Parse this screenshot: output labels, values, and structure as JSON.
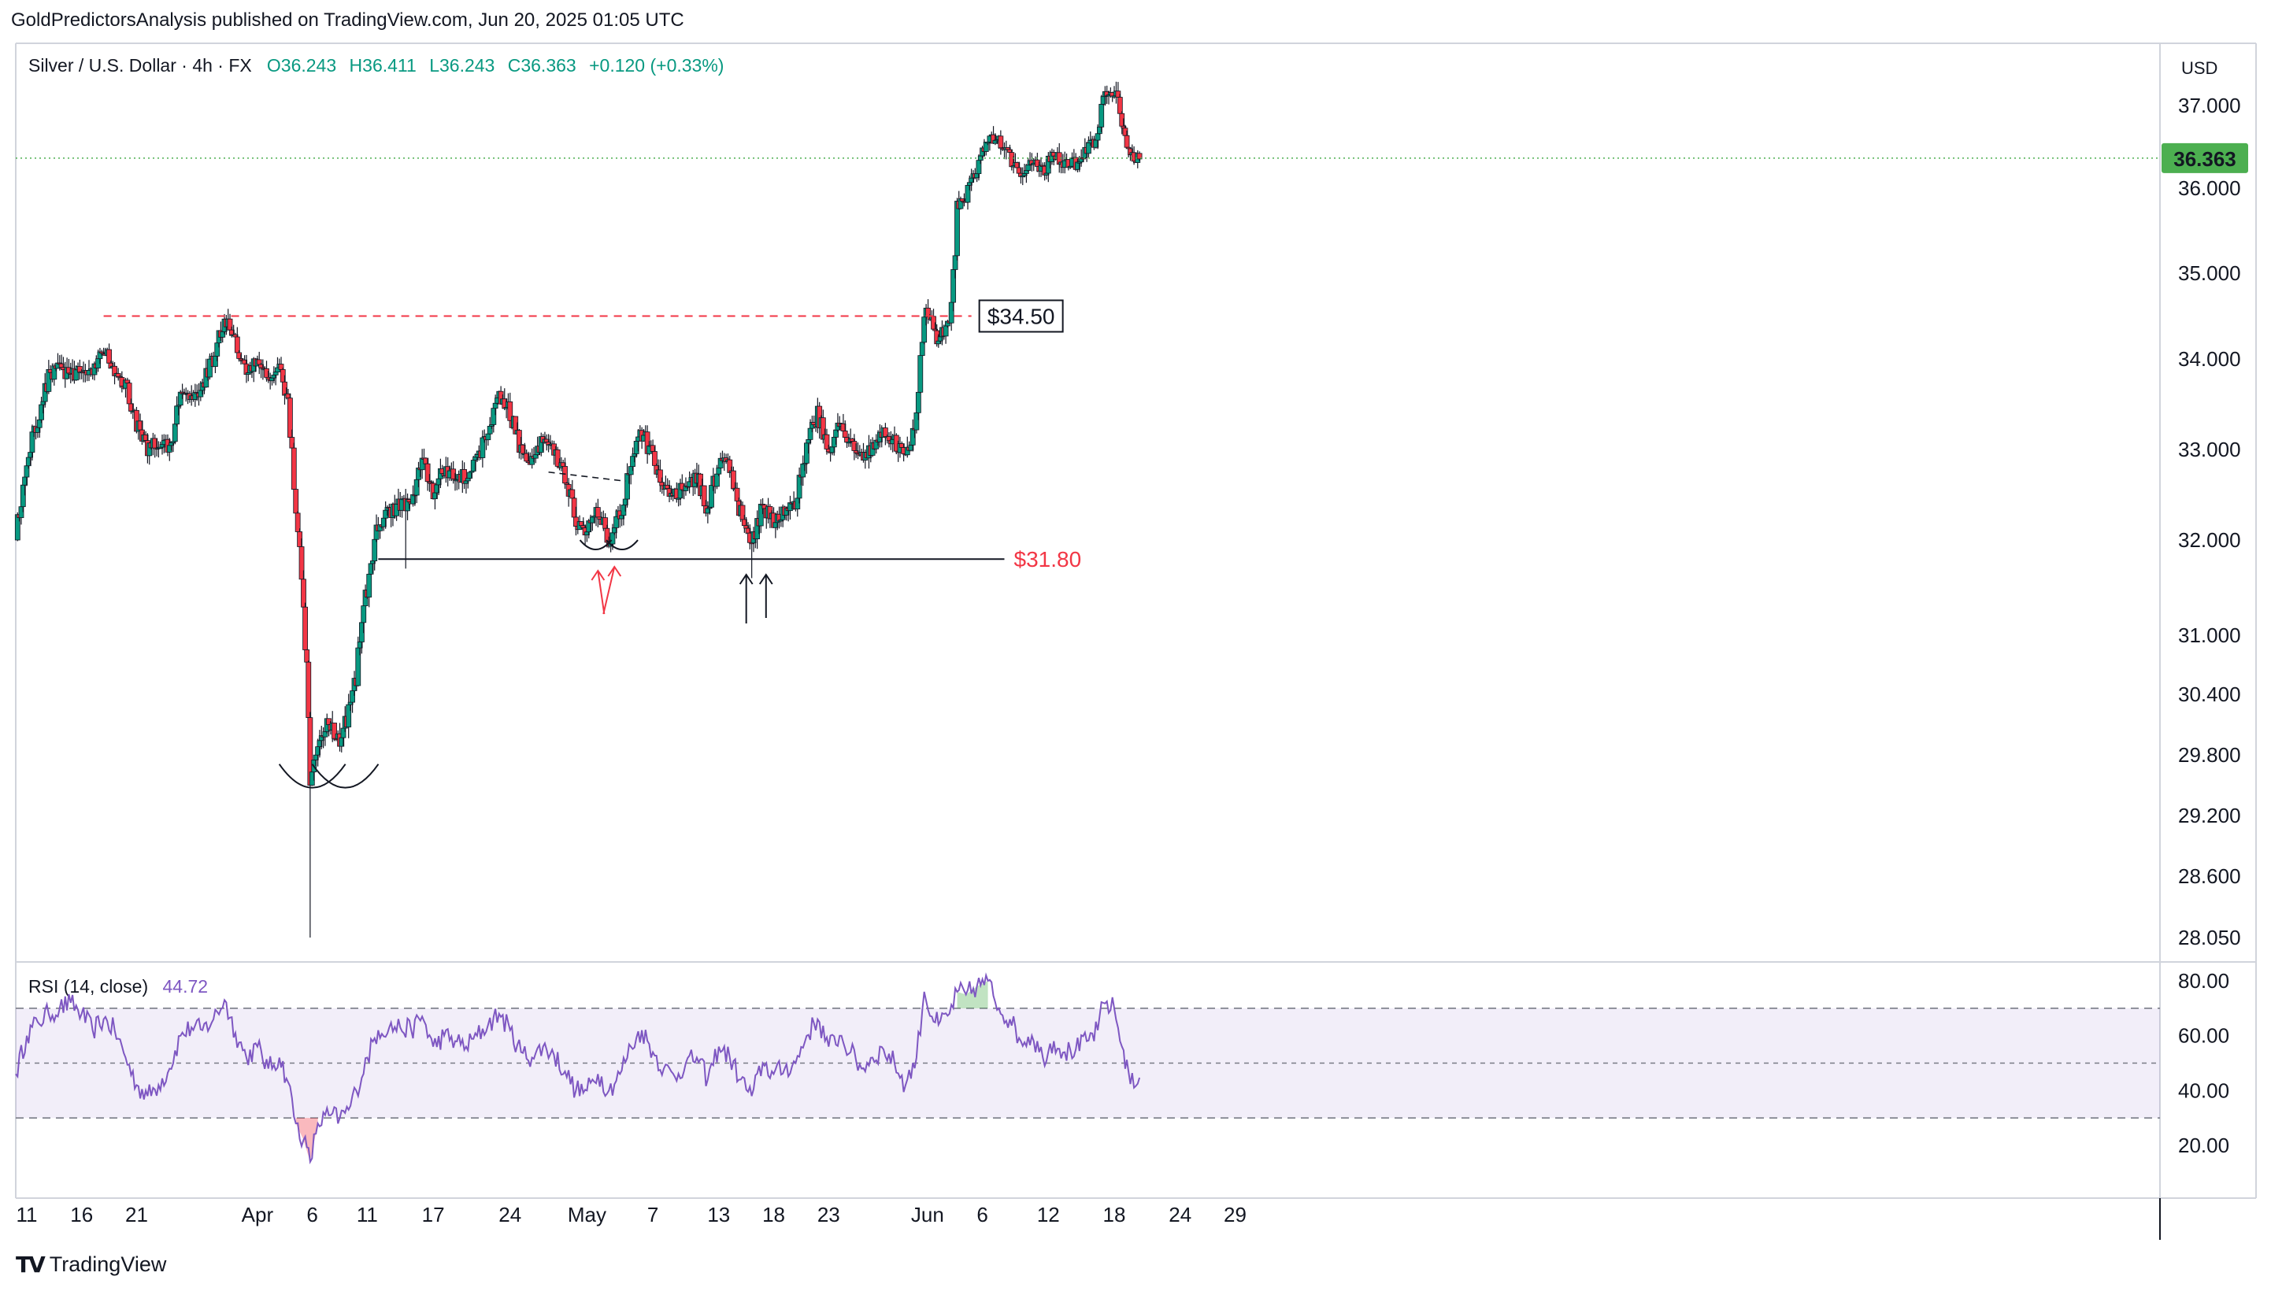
{
  "header": {
    "published_line": "GoldPredictorsAnalysis published on TradingView.com, Jun 20, 2025 01:05 UTC",
    "symbol": "Silver / U.S. Dollar · 4h · FX",
    "open": "O36.243",
    "high": "H36.411",
    "low": "L36.243",
    "close": "C36.363",
    "change": "+0.120 (+0.33%)"
  },
  "axis": {
    "currency": "USD"
  },
  "rsi": {
    "label": "RSI (14, close)",
    "value": "44.72"
  },
  "footer": {
    "brand": "TradingView"
  },
  "colors": {
    "up": "#089981",
    "down": "#f23645",
    "rsi": "#7e57c2",
    "price_badge": "#4caf50"
  },
  "chart_data": [
    {
      "type": "candlestick",
      "symbol": "Silver / U.S. Dollar",
      "interval": "4h",
      "y_ticks": [
        28.05,
        28.6,
        29.2,
        29.8,
        30.4,
        31.0,
        32.0,
        33.0,
        34.0,
        35.0,
        36.0,
        37.0
      ],
      "y_tick_labels": [
        "28.050",
        "28.600",
        "29.200",
        "29.800",
        "30.400",
        "31.000",
        "32.000",
        "33.000",
        "34.000",
        "35.000",
        "36.000",
        "37.000"
      ],
      "x_ticks": [
        {
          "day": 11,
          "label": "11"
        },
        {
          "day": 16,
          "label": "16"
        },
        {
          "day": 21,
          "label": "21"
        },
        {
          "day": 32,
          "label": "Apr"
        },
        {
          "day": 37,
          "label": "6"
        },
        {
          "day": 42,
          "label": "11"
        },
        {
          "day": 48,
          "label": "17"
        },
        {
          "day": 55,
          "label": "24"
        },
        {
          "day": 62,
          "label": "May"
        },
        {
          "day": 68,
          "label": "7"
        },
        {
          "day": 74,
          "label": "13"
        },
        {
          "day": 79,
          "label": "18"
        },
        {
          "day": 84,
          "label": "23"
        },
        {
          "day": 93,
          "label": "Jun"
        },
        {
          "day": 98,
          "label": "6"
        },
        {
          "day": 104,
          "label": "12"
        },
        {
          "day": 110,
          "label": "18"
        },
        {
          "day": 116,
          "label": "24"
        },
        {
          "day": 121,
          "label": "29"
        }
      ],
      "close_path": [
        [
          10,
          32.0
        ],
        [
          11,
          32.9
        ],
        [
          12,
          33.3
        ],
        [
          13,
          33.8
        ],
        [
          14,
          33.9
        ],
        [
          15,
          33.8
        ],
        [
          16,
          33.9
        ],
        [
          17,
          33.8
        ],
        [
          18,
          34.1
        ],
        [
          19,
          33.9
        ],
        [
          20,
          33.7
        ],
        [
          21,
          33.3
        ],
        [
          22,
          33.0
        ],
        [
          23,
          33.1
        ],
        [
          24,
          33.0
        ],
        [
          25,
          33.6
        ],
        [
          26,
          33.6
        ],
        [
          27,
          33.7
        ],
        [
          28,
          34.0
        ],
        [
          29,
          34.5
        ],
        [
          30,
          34.2
        ],
        [
          31,
          33.8
        ],
        [
          32,
          34.0
        ],
        [
          33,
          33.8
        ],
        [
          34,
          33.9
        ],
        [
          34.8,
          33.5
        ],
        [
          35.5,
          32.4
        ],
        [
          36.2,
          31.4
        ],
        [
          36.8,
          29.6
        ],
        [
          37.5,
          29.9
        ],
        [
          38.5,
          30.1
        ],
        [
          39.5,
          29.9
        ],
        [
          40.3,
          30.2
        ],
        [
          41,
          30.6
        ],
        [
          42,
          31.5
        ],
        [
          43,
          32.2
        ],
        [
          44,
          32.3
        ],
        [
          45,
          32.4
        ],
        [
          46,
          32.4
        ],
        [
          47,
          32.9
        ],
        [
          48,
          32.5
        ],
        [
          49,
          32.8
        ],
        [
          50,
          32.7
        ],
        [
          51,
          32.7
        ],
        [
          52,
          32.9
        ],
        [
          53,
          33.2
        ],
        [
          54,
          33.6
        ],
        [
          55,
          33.4
        ],
        [
          56,
          33.0
        ],
        [
          57,
          32.9
        ],
        [
          58,
          33.1
        ],
        [
          59,
          33.0
        ],
        [
          60,
          32.7
        ],
        [
          61,
          32.2
        ],
        [
          62,
          32.1
        ],
        [
          63,
          32.3
        ],
        [
          64,
          32.0
        ],
        [
          65,
          32.3
        ],
        [
          66,
          32.8
        ],
        [
          67,
          33.2
        ],
        [
          68,
          32.9
        ],
        [
          69,
          32.6
        ],
        [
          70,
          32.5
        ],
        [
          71,
          32.6
        ],
        [
          72,
          32.7
        ],
        [
          73,
          32.3
        ],
        [
          74,
          32.9
        ],
        [
          75,
          32.8
        ],
        [
          76,
          32.3
        ],
        [
          77,
          31.9
        ],
        [
          78,
          32.4
        ],
        [
          79,
          32.2
        ],
        [
          80,
          32.3
        ],
        [
          81,
          32.4
        ],
        [
          82,
          33.0
        ],
        [
          83,
          33.4
        ],
        [
          84,
          33.0
        ],
        [
          85,
          33.3
        ],
        [
          86,
          33.1
        ],
        [
          87,
          32.9
        ],
        [
          88,
          33.0
        ],
        [
          89,
          33.2
        ],
        [
          90,
          33.1
        ],
        [
          91,
          32.9
        ],
        [
          92,
          33.3
        ],
        [
          92.7,
          34.6
        ],
        [
          93.4,
          34.4
        ],
        [
          94,
          34.2
        ],
        [
          95,
          34.5
        ],
        [
          95.7,
          35.7
        ],
        [
          96.5,
          35.9
        ],
        [
          97.5,
          36.2
        ],
        [
          98.5,
          36.6
        ],
        [
          99.5,
          36.6
        ],
        [
          100.5,
          36.4
        ],
        [
          101.5,
          36.1
        ],
        [
          102.5,
          36.3
        ],
        [
          103.5,
          36.2
        ],
        [
          104.5,
          36.4
        ],
        [
          105.5,
          36.3
        ],
        [
          106.5,
          36.3
        ],
        [
          107.5,
          36.5
        ],
        [
          108.5,
          36.6
        ],
        [
          109,
          37.1
        ],
        [
          110,
          37.2
        ],
        [
          110.7,
          36.8
        ],
        [
          111.3,
          36.5
        ],
        [
          111.8,
          36.3
        ],
        [
          112.3,
          36.36
        ]
      ],
      "big_wick_lows": [
        [
          36.8,
          28.05
        ],
        [
          77,
          31.6
        ],
        [
          45.5,
          31.7
        ]
      ],
      "annotations": {
        "resistance": {
          "label": "$34.50",
          "value": 34.5,
          "from_day": 18,
          "to_day": 97
        },
        "support": {
          "label": "$31.80",
          "value": 31.8,
          "from_day": 43,
          "to_day": 100
        },
        "current_price": {
          "label": "36.363",
          "value": 36.363
        },
        "neckline_values": [
          32.75,
          32.65
        ],
        "arrow_days_red": [
          63,
          64.5
        ],
        "arrow_days_black": [
          76.5,
          78.3
        ],
        "bottoms_days": [
          37,
          40
        ]
      }
    },
    {
      "type": "line",
      "name": "RSI (14, close)",
      "y_ticks": [
        20,
        40,
        60,
        80
      ],
      "y_tick_labels": [
        "20.00",
        "40.00",
        "60.00",
        "80.00"
      ],
      "bands": {
        "upper": 70,
        "middle": 50,
        "lower": 30
      },
      "points": [
        [
          10,
          46
        ],
        [
          11,
          60
        ],
        [
          12,
          65
        ],
        [
          13,
          68
        ],
        [
          14,
          70
        ],
        [
          15,
          72
        ],
        [
          16,
          68
        ],
        [
          17,
          62
        ],
        [
          18,
          66
        ],
        [
          19,
          62
        ],
        [
          20,
          52
        ],
        [
          21,
          42
        ],
        [
          22,
          38
        ],
        [
          23,
          42
        ],
        [
          24,
          48
        ],
        [
          25,
          60
        ],
        [
          26,
          63
        ],
        [
          27,
          62
        ],
        [
          28,
          66
        ],
        [
          29,
          73
        ],
        [
          30,
          61
        ],
        [
          31,
          52
        ],
        [
          32,
          56
        ],
        [
          33,
          48
        ],
        [
          34,
          52
        ],
        [
          34.8,
          43
        ],
        [
          35.5,
          28
        ],
        [
          36.2,
          22
        ],
        [
          36.8,
          14
        ],
        [
          37.5,
          28
        ],
        [
          38.5,
          31
        ],
        [
          39.5,
          30
        ],
        [
          40.3,
          33
        ],
        [
          41,
          40
        ],
        [
          42,
          52
        ],
        [
          43,
          62
        ],
        [
          44,
          63
        ],
        [
          45,
          63
        ],
        [
          46,
          62
        ],
        [
          47,
          67
        ],
        [
          48,
          56
        ],
        [
          49,
          60
        ],
        [
          50,
          58
        ],
        [
          51,
          56
        ],
        [
          52,
          60
        ],
        [
          53,
          64
        ],
        [
          54,
          68
        ],
        [
          55,
          62
        ],
        [
          56,
          54
        ],
        [
          57,
          52
        ],
        [
          58,
          56
        ],
        [
          59,
          53
        ],
        [
          60,
          47
        ],
        [
          61,
          40
        ],
        [
          62,
          40
        ],
        [
          63,
          46
        ],
        [
          64,
          40
        ],
        [
          65,
          46
        ],
        [
          66,
          56
        ],
        [
          67,
          62
        ],
        [
          68,
          54
        ],
        [
          69,
          48
        ],
        [
          70,
          45
        ],
        [
          71,
          50
        ],
        [
          72,
          52
        ],
        [
          73,
          44
        ],
        [
          74,
          56
        ],
        [
          75,
          52
        ],
        [
          76,
          44
        ],
        [
          77,
          38
        ],
        [
          78,
          50
        ],
        [
          79,
          46
        ],
        [
          80,
          48
        ],
        [
          81,
          50
        ],
        [
          82,
          60
        ],
        [
          83,
          66
        ],
        [
          84,
          56
        ],
        [
          85,
          60
        ],
        [
          86,
          54
        ],
        [
          87,
          48
        ],
        [
          88,
          52
        ],
        [
          89,
          55
        ],
        [
          90,
          50
        ],
        [
          91,
          42
        ],
        [
          92,
          52
        ],
        [
          92.7,
          76
        ],
        [
          93.4,
          67
        ],
        [
          94,
          64
        ],
        [
          95,
          68
        ],
        [
          95.7,
          76
        ],
        [
          96.5,
          75
        ],
        [
          97.5,
          78
        ],
        [
          98.5,
          80
        ],
        [
          99.5,
          70
        ],
        [
          100.5,
          66
        ],
        [
          101.5,
          58
        ],
        [
          102.5,
          60
        ],
        [
          103.5,
          52
        ],
        [
          104.5,
          58
        ],
        [
          105.5,
          54
        ],
        [
          106.5,
          55
        ],
        [
          107.5,
          58
        ],
        [
          108.5,
          62
        ],
        [
          109,
          72
        ],
        [
          110,
          70
        ],
        [
          110.7,
          56
        ],
        [
          111.3,
          47
        ],
        [
          111.8,
          41
        ],
        [
          112.3,
          44.7
        ]
      ]
    }
  ]
}
